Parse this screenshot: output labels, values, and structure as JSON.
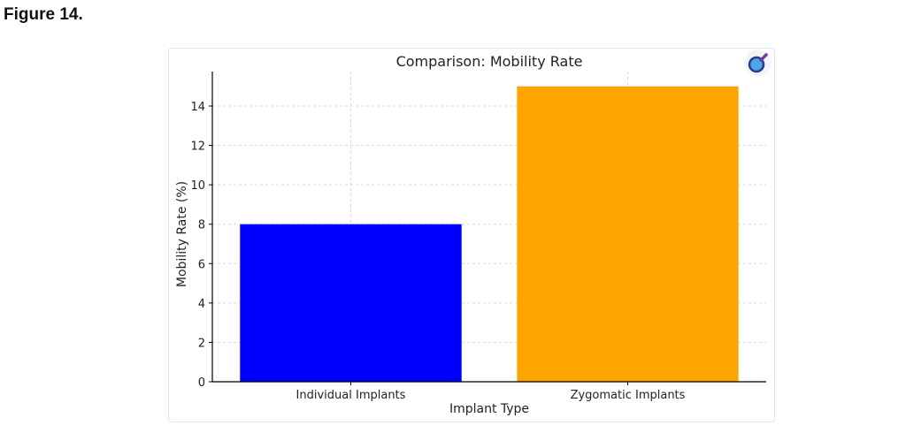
{
  "figure_label": "Figure 14.",
  "icons": {
    "zoom": "magnifier-icon"
  },
  "colors": {
    "bar1": "#0000ff",
    "bar2": "#ffa500",
    "grid": "#d9d9d9",
    "axis": "#000000"
  },
  "chart_data": {
    "type": "bar",
    "title": "Comparison: Mobility Rate",
    "xlabel": "Implant Type",
    "ylabel": "Mobility Rate (%)",
    "categories": [
      "Individual Implants",
      "Zygomatic Implants"
    ],
    "values": [
      8,
      15
    ],
    "ylim": [
      0,
      15.75
    ],
    "yticks": [
      0,
      2,
      4,
      6,
      8,
      10,
      12,
      14
    ],
    "grid": true,
    "bar_colors": [
      "#0000ff",
      "#ffa500"
    ]
  }
}
